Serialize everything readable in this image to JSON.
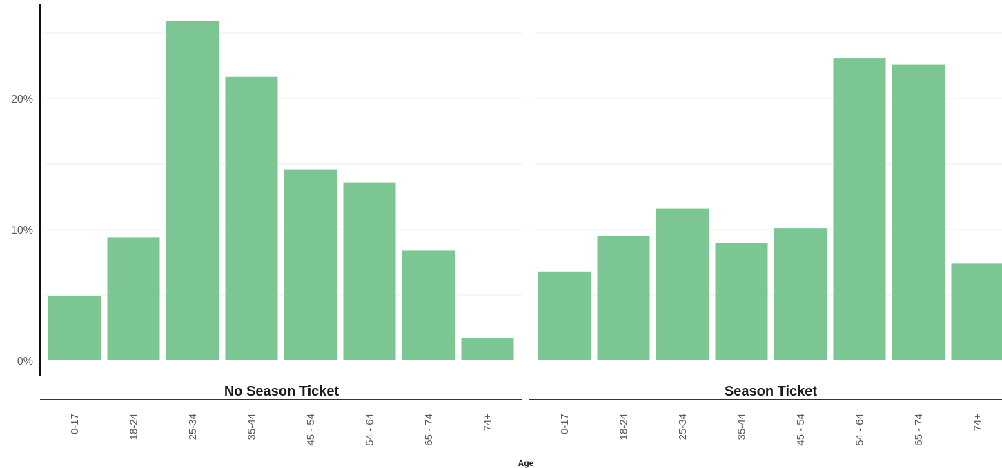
{
  "chart_data": {
    "type": "bar",
    "xlabel": "Age",
    "ylabel": "",
    "ylim": [
      0,
      0.26
    ],
    "y_ticks": [
      0,
      0.1,
      0.2
    ],
    "y_tick_labels": [
      "0%",
      "10%",
      "20%"
    ],
    "grid": true,
    "legend": "none",
    "bar_color": "#7cc694",
    "facets": [
      {
        "title": "No Season Ticket",
        "categories": [
          "0-17",
          "18-24",
          "25-34",
          "35-44",
          "45 - 54",
          "54 - 64",
          "65 - 74",
          "74+"
        ],
        "values": [
          0.049,
          0.094,
          0.259,
          0.217,
          0.146,
          0.136,
          0.084,
          0.017
        ]
      },
      {
        "title": "Season Ticket",
        "categories": [
          "0-17",
          "18-24",
          "25-34",
          "35-44",
          "45 - 54",
          "54 - 64",
          "65 - 74",
          "74+"
        ],
        "values": [
          0.068,
          0.095,
          0.116,
          0.09,
          0.101,
          0.231,
          0.226,
          0.074
        ]
      }
    ]
  }
}
